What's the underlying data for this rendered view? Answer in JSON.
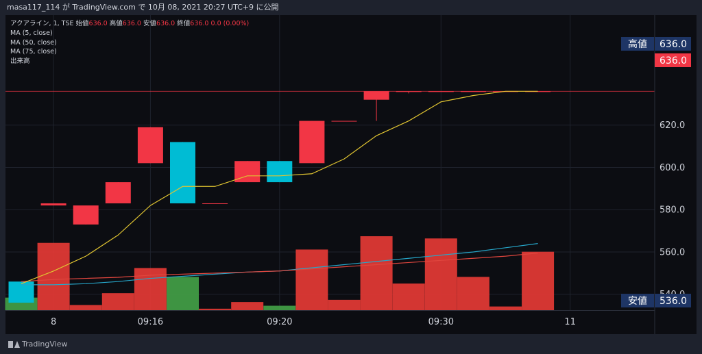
{
  "header": {
    "publish_text": "masa117_114 が TradingView.com で 10月 08, 2021 20:27 UTC+9 に公開"
  },
  "legend": {
    "symbol_line": "アクアライン, 1, TSE",
    "open_label": "始値",
    "open_value": "636.0",
    "high_label": "高値",
    "high_value": "636.0",
    "low_label": "安値",
    "low_value": "636.0",
    "close_label": "終値",
    "close_value": "636.0",
    "change": "0.0 (0.00%)",
    "indicators": [
      "MA (5, close)",
      "MA (50, close)",
      "MA (75, close)",
      "出来高"
    ]
  },
  "price_tags": {
    "high_label": "高値",
    "high_value": "636.0",
    "last_value": "636.0",
    "low_label": "安値",
    "low_value": "536.0"
  },
  "footer": {
    "brand": "TradingView"
  },
  "colors": {
    "up": "#00bcd4",
    "down": "#f23645",
    "vol_up": "#43a047",
    "vol_down": "#e53935",
    "ma5": "#e0c431",
    "ma50": "#e0463e",
    "ma75": "#26a6c9",
    "tag_bg": "#1e3565"
  },
  "chart_data": {
    "type": "candlestick",
    "y_ticks": [
      "540.0",
      "560.0",
      "580.0",
      "600.0",
      "620.0"
    ],
    "ylim": [
      537,
      651
    ],
    "x_ticks": [
      {
        "label": "8",
        "index": 1
      },
      {
        "label": "09:16",
        "index": 4
      },
      {
        "label": "09:20",
        "index": 8
      },
      {
        "label": "09:30",
        "index": 13
      },
      {
        "label": "11",
        "index": 17
      }
    ],
    "candles": [
      {
        "open": 536,
        "close": 546,
        "high": 546,
        "low": 536,
        "volume": 0.17
      },
      {
        "open": 583,
        "close": 582,
        "high": 583,
        "low": 582,
        "volume": 0.91
      },
      {
        "open": 582,
        "close": 573,
        "high": 582,
        "low": 573,
        "volume": 0.07
      },
      {
        "open": 593,
        "close": 583,
        "high": 593,
        "low": 583,
        "volume": 0.23
      },
      {
        "open": 619,
        "close": 602,
        "high": 619,
        "low": 602,
        "volume": 0.57
      },
      {
        "open": 583,
        "close": 612,
        "high": 612,
        "low": 583,
        "volume": 0.45
      },
      {
        "open": 583,
        "close": 583,
        "high": 583,
        "low": 583,
        "volume": 0.02
      },
      {
        "open": 603,
        "close": 593,
        "high": 603,
        "low": 593,
        "volume": 0.11
      },
      {
        "open": 593,
        "close": 603,
        "high": 603,
        "low": 593,
        "volume": 0.06
      },
      {
        "open": 622,
        "close": 602,
        "high": 622,
        "low": 602,
        "volume": 0.82
      },
      {
        "open": 622,
        "close": 622,
        "high": 622,
        "low": 622,
        "volume": 0.14
      },
      {
        "open": 636,
        "close": 632,
        "high": 636,
        "low": 622,
        "volume": 1.0
      },
      {
        "open": 636,
        "close": 636,
        "high": 636,
        "low": 635,
        "volume": 0.36
      },
      {
        "open": 636,
        "close": 636,
        "high": 636,
        "low": 636,
        "volume": 0.97
      },
      {
        "open": 636,
        "close": 636,
        "high": 636,
        "low": 636,
        "volume": 0.45
      },
      {
        "open": 636,
        "close": 636,
        "high": 636,
        "low": 636,
        "volume": 0.05
      },
      {
        "open": 636,
        "close": 636,
        "high": 636,
        "low": 636,
        "volume": 0.79
      }
    ],
    "ma5": [
      545,
      551,
      558,
      568,
      582,
      591,
      591,
      596,
      596,
      597,
      604,
      615,
      622,
      631,
      634,
      636,
      636
    ],
    "ma50": [
      546,
      547,
      547.5,
      548,
      549,
      549.5,
      550,
      550.5,
      551,
      552,
      553,
      554,
      555,
      556,
      557,
      558,
      559.5
    ],
    "ma75": [
      544.5,
      544.5,
      545,
      546,
      547.5,
      548.5,
      549.5,
      550.5,
      551,
      552.5,
      554,
      555.5,
      557,
      558.5,
      560,
      562,
      564
    ]
  }
}
